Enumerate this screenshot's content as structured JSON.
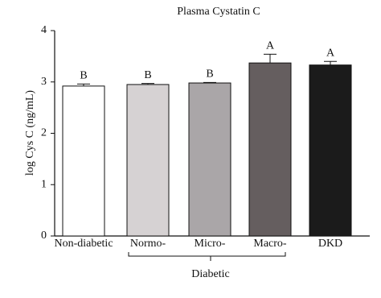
{
  "chart_data": {
    "type": "bar",
    "title": "Plasma Cystatin C",
    "y_label": "log Cys C (ng/mL)",
    "categories": [
      "Non-diabetic",
      "Normo-",
      "Micro-",
      "Macro-",
      "DKD"
    ],
    "values": [
      2.92,
      2.95,
      2.98,
      3.37,
      3.33
    ],
    "errors": [
      0.04,
      0.02,
      0.01,
      0.17,
      0.07
    ],
    "significance": [
      "B",
      "B",
      "B",
      "A",
      "A"
    ],
    "colors": [
      "#ffffff",
      "#d6d2d3",
      "#aaa6a8",
      "#655e5f",
      "#1b1b1b"
    ],
    "group_label": "Diabetic",
    "ylim": [
      0,
      4
    ],
    "yticks": [
      0,
      1,
      2,
      3,
      4
    ]
  }
}
